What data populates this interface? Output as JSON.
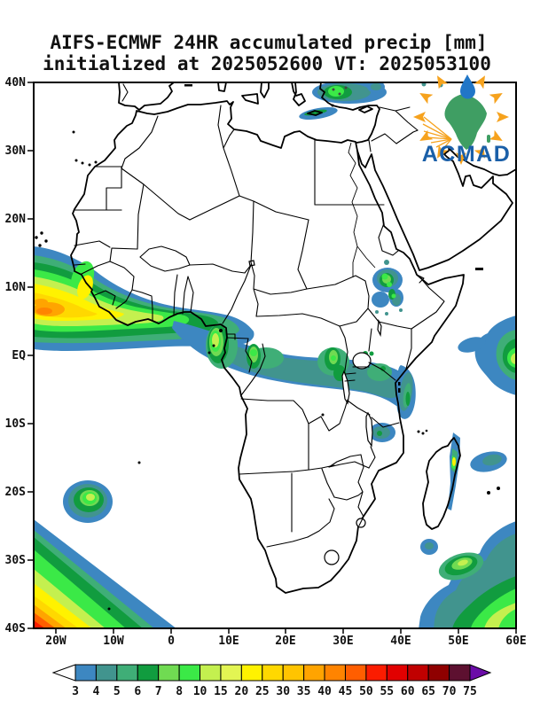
{
  "title": {
    "line1": "AIFS-ECMWF 24HR accumulated precip [mm]",
    "line2": "initialized at 2025052600 VT: 2025053100"
  },
  "map": {
    "lat_ticks": [
      "40N",
      "30N",
      "20N",
      "10N",
      "EQ",
      "10S",
      "20S",
      "30S",
      "40S"
    ],
    "lon_ticks": [
      "20W",
      "10W",
      "0",
      "10E",
      "20E",
      "30E",
      "40E",
      "50E",
      "60E"
    ]
  },
  "colorbar": {
    "labels": [
      "3",
      "4",
      "5",
      "6",
      "7",
      "8",
      "10",
      "15",
      "20",
      "25",
      "30",
      "35",
      "40",
      "45",
      "50",
      "55",
      "60",
      "65",
      "70",
      "75"
    ],
    "cell_colors": [
      "#3d87c1",
      "#41948e",
      "#3fae77",
      "#119c3f",
      "#70db52",
      "#3be947",
      "#c4f04f",
      "#e3f553",
      "#fff200",
      "#ffd800",
      "#ffc400",
      "#ffa400",
      "#ff8400",
      "#ff5e00",
      "#fb1c00",
      "#e10000",
      "#c00000",
      "#8f0000",
      "#5d1030"
    ],
    "overflow_color": "#6b0ca8",
    "underflow_color": "#ffffff"
  },
  "logo": {
    "text": "ACMAD",
    "text_color": "#1a5fa8",
    "africa_color": "#3f9e63",
    "drop_color": "#2176c7",
    "arrow_color": "#f6a21d"
  }
}
